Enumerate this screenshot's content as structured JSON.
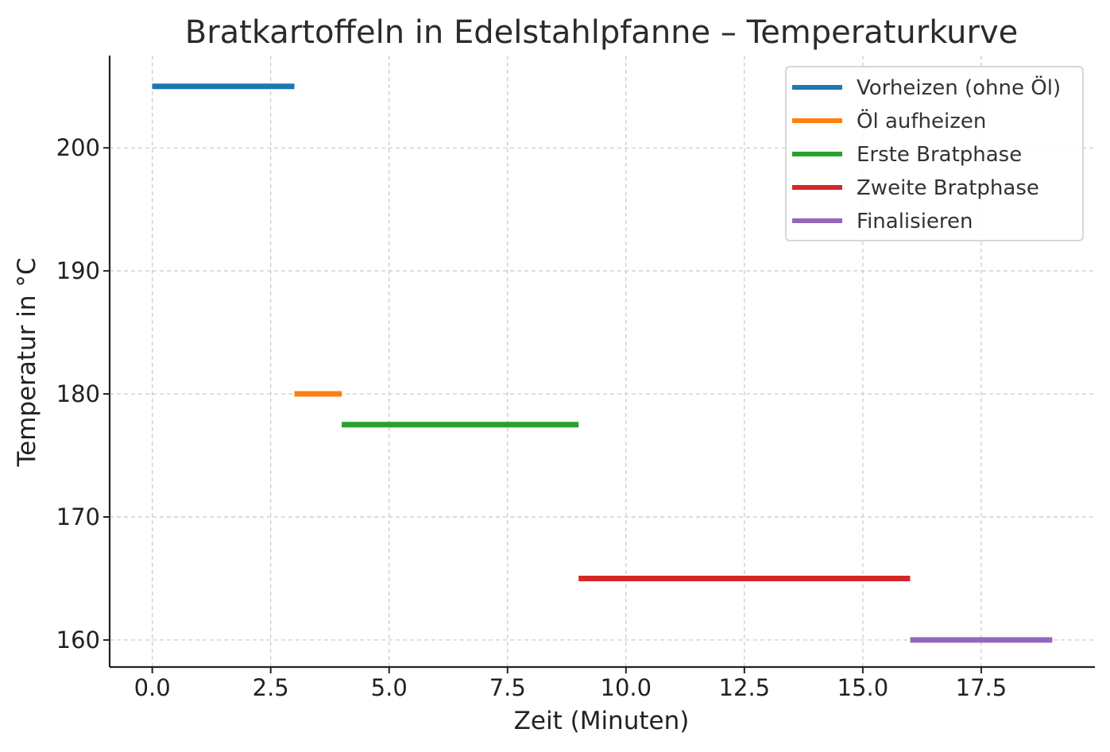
{
  "chart_data": {
    "type": "line",
    "title": "Bratkartoffeln in Edelstahlpfanne – Temperaturkurve",
    "xlabel": "Zeit (Minuten)",
    "ylabel": "Temperatur in °C",
    "xlim": [
      -0.9,
      19.9
    ],
    "ylim": [
      157.8,
      207.5
    ],
    "xticks": [
      0.0,
      2.5,
      5.0,
      7.5,
      10.0,
      12.5,
      15.0,
      17.5
    ],
    "xtick_labels": [
      "0.0",
      "2.5",
      "5.0",
      "7.5",
      "10.0",
      "12.5",
      "15.0",
      "17.5"
    ],
    "yticks": [
      160,
      170,
      180,
      190,
      200
    ],
    "ytick_labels": [
      "160",
      "170",
      "180",
      "190",
      "200"
    ],
    "grid": true,
    "legend_position": "top-right",
    "series": [
      {
        "name": "Vorheizen (ohne Öl)",
        "color": "#1f77b4",
        "x": [
          0,
          3
        ],
        "y": [
          205,
          205
        ]
      },
      {
        "name": "Öl aufheizen",
        "color": "#ff7f0e",
        "x": [
          3,
          4
        ],
        "y": [
          180,
          180
        ]
      },
      {
        "name": "Erste Bratphase",
        "color": "#2ca02c",
        "x": [
          4,
          9
        ],
        "y": [
          177.5,
          177.5
        ]
      },
      {
        "name": "Zweite Bratphase",
        "color": "#d62728",
        "x": [
          9,
          16
        ],
        "y": [
          165,
          165
        ]
      },
      {
        "name": "Finalisieren",
        "color": "#9467bd",
        "x": [
          16,
          19
        ],
        "y": [
          160,
          160
        ]
      }
    ]
  }
}
